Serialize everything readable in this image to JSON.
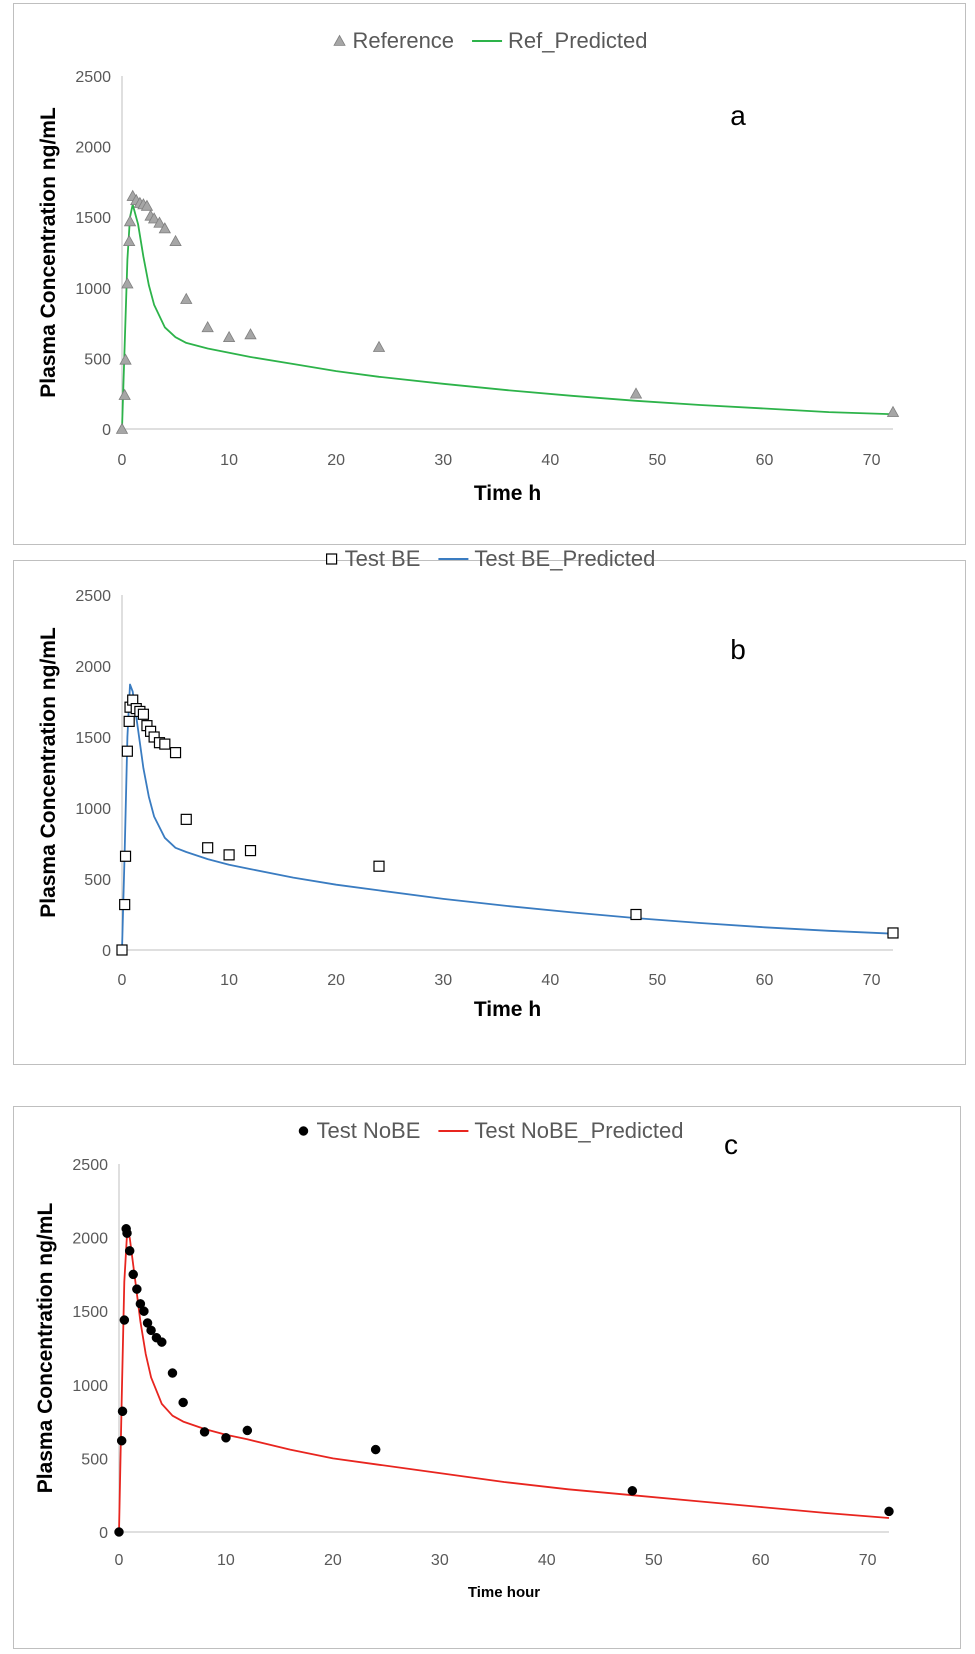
{
  "chart_data": [
    {
      "type": "scatter",
      "panel_label": "a",
      "legend": {
        "observed": "Reference",
        "predicted": "Ref_Predicted",
        "placement": "top-center"
      },
      "xlabel": "Time h",
      "ylabel": "Plasma Concentration  ng/mL",
      "xlim": [
        0,
        72
      ],
      "ylim": [
        0,
        2500
      ],
      "xticks": [
        "0",
        "10",
        "20",
        "30",
        "40",
        "50",
        "60",
        "70"
      ],
      "yticks": [
        "0",
        "500",
        "1000",
        "1500",
        "2000",
        "2500"
      ],
      "marker": "triangle",
      "colors": {
        "marker_fill": "#a6a6a6",
        "marker_stroke": "#7f7f7f",
        "line": "#2db34a"
      },
      "grid": false,
      "series": [
        {
          "name": "Reference",
          "kind": "points",
          "x": [
            0,
            0.25,
            0.33,
            0.5,
            0.67,
            0.75,
            1,
            1.33,
            1.67,
            2,
            2.33,
            2.67,
            3,
            3.5,
            4,
            5,
            6,
            8,
            10,
            12,
            24,
            48,
            72
          ],
          "y": [
            0,
            240,
            490,
            1030,
            1330,
            1470,
            1650,
            1620,
            1600,
            1590,
            1580,
            1510,
            1490,
            1460,
            1420,
            1330,
            920,
            720,
            650,
            670,
            580,
            250,
            120
          ]
        },
        {
          "name": "Ref_Predicted",
          "kind": "line",
          "x": [
            0,
            0.25,
            0.5,
            0.75,
            1,
            1.5,
            2,
            2.5,
            3,
            4,
            5,
            6,
            8,
            10,
            12,
            16,
            20,
            24,
            30,
            36,
            42,
            48,
            54,
            60,
            66,
            72
          ],
          "y": [
            0,
            600,
            1200,
            1500,
            1590,
            1450,
            1220,
            1020,
            880,
            720,
            650,
            610,
            570,
            540,
            510,
            460,
            410,
            370,
            320,
            275,
            235,
            200,
            170,
            145,
            120,
            105
          ]
        }
      ]
    },
    {
      "type": "scatter",
      "panel_label": "b",
      "legend": {
        "observed": "Test BE",
        "predicted": "Test BE_Predicted",
        "placement": "top-center"
      },
      "xlabel": "Time h",
      "ylabel": "Plasma Concentration  ng/mL",
      "xlim": [
        0,
        72
      ],
      "ylim": [
        0,
        2500
      ],
      "xticks": [
        "0",
        "10",
        "20",
        "30",
        "40",
        "50",
        "60",
        "70"
      ],
      "yticks": [
        "0",
        "500",
        "1000",
        "1500",
        "2000",
        "2500"
      ],
      "marker": "square",
      "colors": {
        "marker_fill": "#ffffff",
        "marker_stroke": "#000000",
        "line": "#3a7cc1"
      },
      "grid": false,
      "series": [
        {
          "name": "Test BE",
          "kind": "points",
          "x": [
            0,
            0.25,
            0.33,
            0.5,
            0.67,
            0.75,
            1,
            1.33,
            1.67,
            2,
            2.33,
            2.67,
            3,
            3.5,
            4,
            5,
            6,
            8,
            10,
            12,
            24,
            48,
            72
          ],
          "y": [
            0,
            320,
            660,
            1400,
            1610,
            1710,
            1760,
            1700,
            1680,
            1660,
            1580,
            1540,
            1500,
            1460,
            1450,
            1390,
            920,
            720,
            670,
            700,
            590,
            250,
            120
          ]
        },
        {
          "name": "Test BE_Predicted",
          "kind": "line",
          "x": [
            0,
            0.25,
            0.5,
            0.75,
            1,
            1.5,
            2,
            2.5,
            3,
            4,
            5,
            6,
            8,
            10,
            12,
            16,
            20,
            24,
            30,
            36,
            42,
            48,
            54,
            60,
            66,
            72
          ],
          "y": [
            0,
            700,
            1500,
            1870,
            1820,
            1550,
            1280,
            1080,
            940,
            790,
            720,
            690,
            640,
            600,
            570,
            510,
            460,
            420,
            360,
            310,
            265,
            225,
            190,
            160,
            135,
            115
          ]
        }
      ]
    },
    {
      "type": "scatter",
      "panel_label": "c",
      "legend": {
        "observed": "Test NoBE",
        "predicted": "Test NoBE_Predicted",
        "placement": "top-center"
      },
      "xlabel": "Time hour",
      "ylabel": "Plasma Concentration  ng/mL",
      "xlim": [
        0,
        72
      ],
      "ylim": [
        0,
        2500
      ],
      "xticks": [
        "0",
        "10",
        "20",
        "30",
        "40",
        "50",
        "60",
        "70"
      ],
      "yticks": [
        "0",
        "500",
        "1000",
        "1500",
        "2000",
        "2500"
      ],
      "marker": "circle",
      "colors": {
        "marker_fill": "#000000",
        "marker_stroke": "#000000",
        "line": "#e8251f"
      },
      "grid": false,
      "series": [
        {
          "name": "Test NoBE",
          "kind": "points",
          "x": [
            0,
            0.25,
            0.33,
            0.5,
            0.67,
            0.75,
            1,
            1.33,
            1.67,
            2,
            2.33,
            2.67,
            3,
            3.5,
            4,
            5,
            6,
            8,
            10,
            12,
            24,
            48,
            72
          ],
          "y": [
            0,
            620,
            820,
            1440,
            2060,
            2030,
            1910,
            1750,
            1650,
            1550,
            1500,
            1420,
            1370,
            1320,
            1290,
            1080,
            880,
            680,
            640,
            690,
            560,
            280,
            140
          ]
        },
        {
          "name": "Test NoBE_Predicted",
          "kind": "line",
          "x": [
            0,
            0.25,
            0.5,
            0.75,
            1,
            1.5,
            2,
            2.5,
            3,
            4,
            5,
            6,
            8,
            10,
            12,
            16,
            20,
            24,
            30,
            36,
            42,
            48,
            54,
            60,
            66,
            72
          ],
          "y": [
            0,
            900,
            1700,
            2020,
            2000,
            1720,
            1430,
            1210,
            1050,
            870,
            790,
            750,
            700,
            660,
            630,
            560,
            500,
            460,
            400,
            340,
            290,
            250,
            210,
            170,
            130,
            95
          ]
        }
      ]
    }
  ]
}
